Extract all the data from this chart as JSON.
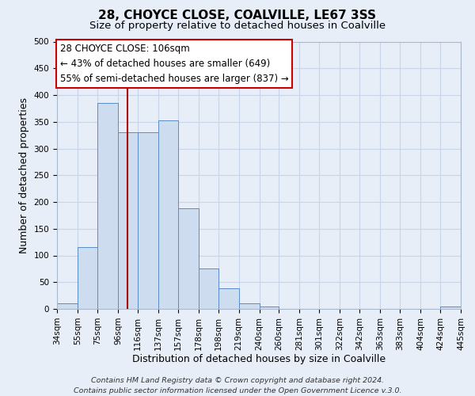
{
  "title": "28, CHOYCE CLOSE, COALVILLE, LE67 3SS",
  "subtitle": "Size of property relative to detached houses in Coalville",
  "xlabel": "Distribution of detached houses by size in Coalville",
  "ylabel": "Number of detached properties",
  "bar_left_edges": [
    34,
    55,
    75,
    96,
    116,
    137,
    157,
    178,
    198,
    219,
    240,
    260,
    281,
    301,
    322,
    342,
    363,
    383,
    404,
    424
  ],
  "bar_widths": [
    21,
    20,
    21,
    20,
    21,
    20,
    21,
    20,
    21,
    21,
    20,
    21,
    20,
    21,
    20,
    21,
    20,
    21,
    20,
    21
  ],
  "bar_heights": [
    10,
    115,
    385,
    330,
    330,
    352,
    188,
    75,
    38,
    10,
    5,
    0,
    0,
    0,
    0,
    0,
    0,
    0,
    0,
    5
  ],
  "bar_color": "#cddcef",
  "bar_edge_color": "#5b8cc8",
  "grid_color": "#c8d4e8",
  "bg_color": "#e8eef8",
  "property_line_x": 106,
  "property_line_color": "#aa0000",
  "annotation_text": "28 CHOYCE CLOSE: 106sqm\n← 43% of detached houses are smaller (649)\n55% of semi-detached houses are larger (837) →",
  "annotation_box_color": "#ffffff",
  "annotation_box_edge": "#cc0000",
  "xlim": [
    34,
    445
  ],
  "ylim": [
    0,
    500
  ],
  "yticks": [
    0,
    50,
    100,
    150,
    200,
    250,
    300,
    350,
    400,
    450,
    500
  ],
  "xtick_labels": [
    "34sqm",
    "55sqm",
    "75sqm",
    "96sqm",
    "116sqm",
    "137sqm",
    "157sqm",
    "178sqm",
    "198sqm",
    "219sqm",
    "240sqm",
    "260sqm",
    "281sqm",
    "301sqm",
    "322sqm",
    "342sqm",
    "363sqm",
    "383sqm",
    "404sqm",
    "424sqm",
    "445sqm"
  ],
  "xtick_positions": [
    34,
    55,
    75,
    96,
    116,
    137,
    157,
    178,
    198,
    219,
    240,
    260,
    281,
    301,
    322,
    342,
    363,
    383,
    404,
    424,
    445
  ],
  "footer_text": "Contains HM Land Registry data © Crown copyright and database right 2024.\nContains public sector information licensed under the Open Government Licence v.3.0.",
  "title_fontsize": 11,
  "subtitle_fontsize": 9.5,
  "axis_label_fontsize": 9,
  "tick_fontsize": 7.5,
  "annotation_fontsize": 8.5,
  "footer_fontsize": 6.8
}
